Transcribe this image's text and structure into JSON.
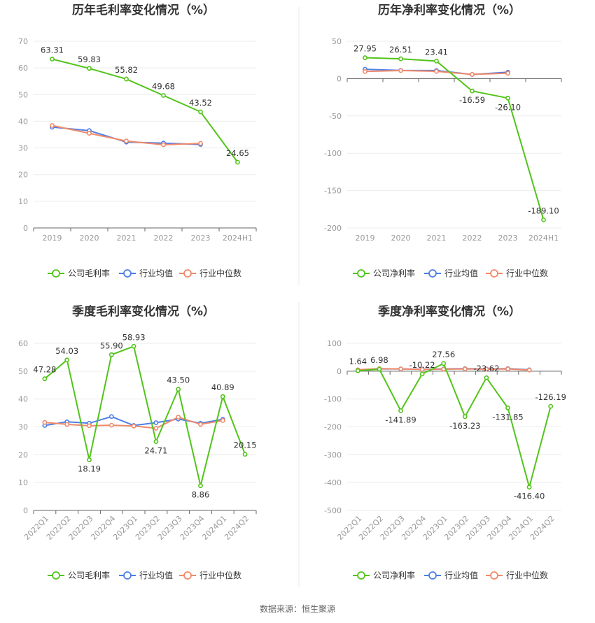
{
  "source": "数据来源：恒生聚源",
  "chart_data": [
    {
      "type": "line",
      "title": "历年毛利率变化情况（%）",
      "categories": [
        "2019",
        "2020",
        "2021",
        "2022",
        "2023",
        "2024H1"
      ],
      "yticks": [
        0,
        10,
        20,
        30,
        40,
        50,
        60,
        70
      ],
      "ylim": [
        0,
        70
      ],
      "grid": true,
      "legend_position": "bottom",
      "series": [
        {
          "name": "公司毛利率",
          "color": "#52c41a",
          "values": [
            63.31,
            59.83,
            55.82,
            49.68,
            43.52,
            24.65
          ],
          "labels": [
            "63.31",
            "59.83",
            "55.82",
            "49.68",
            "43.52",
            "24.65"
          ]
        },
        {
          "name": "行业均值",
          "color": "#4e7ee6",
          "values": [
            37.8,
            36.5,
            32.2,
            31.8,
            31.3,
            null
          ],
          "labels": []
        },
        {
          "name": "行业中位数",
          "color": "#f08a6a",
          "values": [
            38.4,
            35.5,
            32.6,
            31.2,
            31.7,
            null
          ],
          "labels": []
        }
      ]
    },
    {
      "type": "line",
      "title": "历年净利率变化情况（%）",
      "categories": [
        "2019",
        "2020",
        "2021",
        "2022",
        "2023",
        "2024H1"
      ],
      "yticks": [
        -200,
        -150,
        -100,
        -50,
        0,
        50
      ],
      "ylim": [
        -200,
        50
      ],
      "grid": true,
      "legend_position": "bottom",
      "series": [
        {
          "name": "公司净利率",
          "color": "#52c41a",
          "values": [
            27.95,
            26.51,
            23.41,
            -16.59,
            -26.1,
            -189.1
          ],
          "labels": [
            "27.95",
            "26.51",
            "23.41",
            "-16.59",
            "-26.10",
            "-189.10"
          ]
        },
        {
          "name": "行业均值",
          "color": "#4e7ee6",
          "values": [
            12.5,
            11.0,
            10.8,
            5.5,
            8.5,
            null
          ],
          "labels": []
        },
        {
          "name": "行业中位数",
          "color": "#f08a6a",
          "values": [
            9.5,
            10.8,
            9.7,
            5.6,
            7.2,
            null
          ],
          "labels": []
        }
      ]
    },
    {
      "type": "line",
      "title": "季度毛利率变化情况（%）",
      "categories": [
        "2022Q1",
        "2022Q2",
        "2022Q3",
        "2022Q4",
        "2023Q1",
        "2023Q2",
        "2023Q3",
        "2023Q4",
        "2024Q1",
        "2024Q2"
      ],
      "yticks": [
        0,
        10,
        20,
        30,
        40,
        50,
        60
      ],
      "ylim": [
        0,
        60
      ],
      "grid": true,
      "legend_position": "bottom",
      "series": [
        {
          "name": "公司毛利率",
          "color": "#52c41a",
          "values": [
            47.28,
            54.03,
            18.19,
            55.9,
            58.93,
            24.71,
            43.5,
            8.86,
            40.89,
            20.15
          ],
          "labels": [
            "47.28",
            "54.03",
            "18.19",
            "55.90",
            "58.93",
            "24.71",
            "43.50",
            "8.86",
            "40.89",
            "20.15"
          ]
        },
        {
          "name": "行业均值",
          "color": "#4e7ee6",
          "values": [
            30.5,
            31.8,
            31.3,
            33.7,
            30.5,
            31.5,
            32.8,
            31.3,
            32.7,
            null
          ],
          "labels": []
        },
        {
          "name": "行业中位数",
          "color": "#f08a6a",
          "values": [
            31.6,
            30.9,
            30.4,
            30.6,
            30.3,
            29.5,
            33.5,
            30.9,
            32.3,
            null
          ],
          "labels": []
        }
      ]
    },
    {
      "type": "line",
      "title": "季度净利率变化情况（%）",
      "categories": [
        "2022Q1",
        "2022Q2",
        "2022Q3",
        "2022Q4",
        "2023Q1",
        "2023Q2",
        "2023Q3",
        "2023Q4",
        "2024Q1",
        "2024Q2"
      ],
      "yticks": [
        -500,
        -400,
        -300,
        -200,
        -100,
        0,
        100
      ],
      "ylim": [
        -500,
        100
      ],
      "grid": true,
      "legend_position": "bottom",
      "series": [
        {
          "name": "公司净利率",
          "color": "#52c41a",
          "values": [
            1.64,
            6.98,
            -141.89,
            -10.22,
            27.56,
            -163.23,
            -23.62,
            -131.85,
            -416.4,
            -126.19
          ],
          "labels": [
            "1.64",
            "6.98",
            "-141.89",
            "-10.22",
            "27.56",
            "-163.23",
            "-23.62",
            "-131.85",
            "-416.40",
            "-126.19"
          ]
        },
        {
          "name": "行业均值",
          "color": "#4e7ee6",
          "values": [
            3,
            8,
            8,
            7,
            8,
            9,
            8,
            9,
            5,
            null
          ],
          "labels": []
        },
        {
          "name": "行业中位数",
          "color": "#f08a6a",
          "values": [
            5,
            9,
            8,
            6,
            7,
            8,
            7,
            8,
            4,
            null
          ],
          "labels": []
        }
      ]
    }
  ]
}
